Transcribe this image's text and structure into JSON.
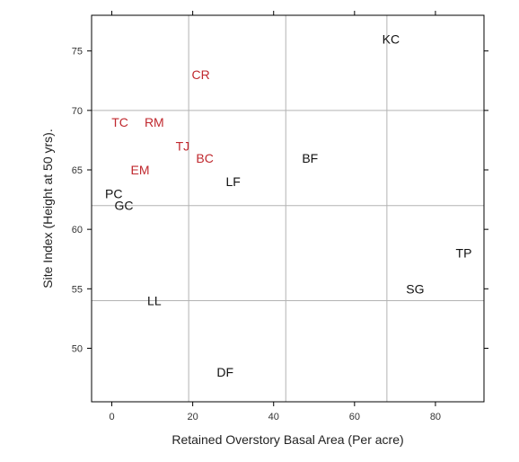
{
  "chart_data": {
    "type": "scatter",
    "title": "",
    "xlabel": "Retained Overstory Basal Area (Per acre)",
    "ylabel": "Site Index (Height at 50 yrs).",
    "xlim": [
      -5,
      92
    ],
    "ylim": [
      45.5,
      78
    ],
    "x_ticks": [
      0,
      20,
      40,
      60,
      80
    ],
    "y_ticks": [
      50,
      55,
      60,
      65,
      70,
      75
    ],
    "x_reference_lines": [
      19,
      43,
      68
    ],
    "y_reference_lines": [
      54,
      62,
      70
    ],
    "grid": false,
    "colors": {
      "highlight": "#c0282e",
      "default": "#111111",
      "reference_line": "#b3b3b3"
    },
    "points": [
      {
        "label": "KC",
        "x": 69,
        "y": 76,
        "group": "default"
      },
      {
        "label": "CR",
        "x": 22,
        "y": 73,
        "group": "highlight"
      },
      {
        "label": "TC",
        "x": 2,
        "y": 69,
        "group": "highlight"
      },
      {
        "label": "RM",
        "x": 10.5,
        "y": 69,
        "group": "highlight"
      },
      {
        "label": "TJ",
        "x": 17.5,
        "y": 67,
        "group": "highlight"
      },
      {
        "label": "BC",
        "x": 23,
        "y": 66,
        "group": "highlight"
      },
      {
        "label": "BF",
        "x": 49,
        "y": 66,
        "group": "default"
      },
      {
        "label": "EM",
        "x": 7,
        "y": 65,
        "group": "highlight"
      },
      {
        "label": "LF",
        "x": 30,
        "y": 64,
        "group": "default"
      },
      {
        "label": "PC",
        "x": 0.5,
        "y": 63,
        "group": "default"
      },
      {
        "label": "GC",
        "x": 3,
        "y": 62,
        "group": "default"
      },
      {
        "label": "TP",
        "x": 87,
        "y": 58,
        "group": "default"
      },
      {
        "label": "SG",
        "x": 75,
        "y": 55,
        "group": "default"
      },
      {
        "label": "LL",
        "x": 10.5,
        "y": 54,
        "group": "default"
      },
      {
        "label": "DF",
        "x": 28,
        "y": 48,
        "group": "default"
      }
    ]
  }
}
